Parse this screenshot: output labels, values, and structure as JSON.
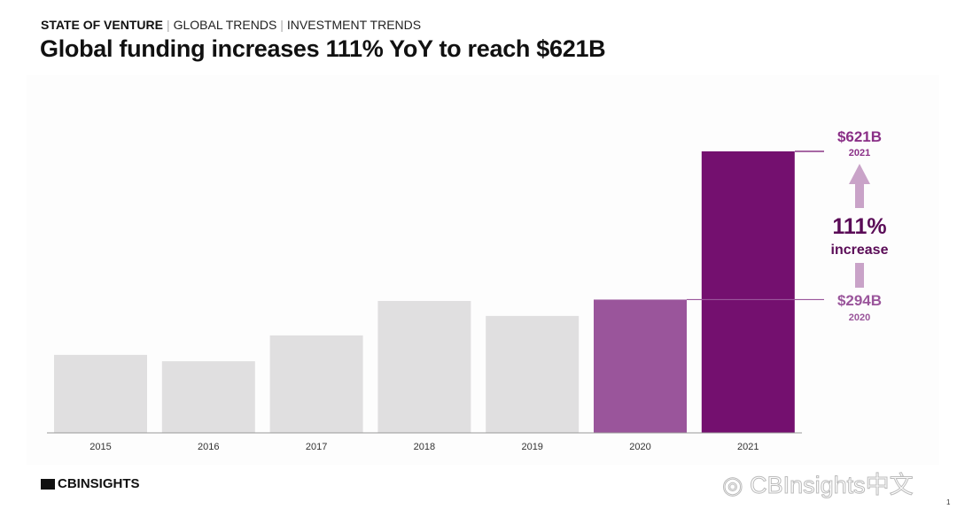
{
  "header": {
    "breadcrumb": [
      "STATE OF VENTURE",
      "GLOBAL TRENDS",
      "INVESTMENT TRENDS"
    ],
    "title": "Global funding increases 111% YoY to reach $621B"
  },
  "chart_data": {
    "type": "bar",
    "title": "",
    "xlabel": "",
    "ylabel": "",
    "grid": false,
    "categories": [
      "2015",
      "2016",
      "2017",
      "2018",
      "2019",
      "2020",
      "2021"
    ],
    "values": [
      172,
      158,
      215,
      291,
      258,
      294,
      621
    ],
    "ylim": [
      0,
      650
    ],
    "colors": [
      "#e0dfe0",
      "#e0dfe0",
      "#e0dfe0",
      "#e0dfe0",
      "#e0dfe0",
      "#9a559b",
      "#74106f"
    ],
    "annotations": {
      "top_value": "$621B",
      "top_year": "2021",
      "bottom_value": "$294B",
      "bottom_year": "2020",
      "pct": "111%",
      "pct_label": "increase",
      "arrow_color": "#c9a3c8",
      "accent": "#74106f"
    }
  },
  "footer": {
    "logo": "CBINSIGHTS",
    "watermark": "CBInsights中文",
    "page": "1"
  }
}
